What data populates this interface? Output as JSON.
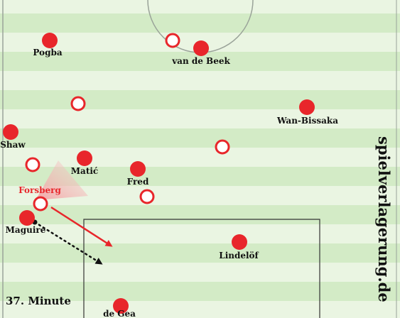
{
  "colors": {
    "stripe_light": "#eaf5e2",
    "stripe_dark": "#d3ebc6",
    "line": "#9aa399",
    "player_fill": "#e8262b",
    "label": "#111111",
    "highlight_label": "#e8262b"
  },
  "filled_players": [
    {
      "label": "Pogba"
    },
    {
      "label": "van de Beek"
    },
    {
      "label": "Wan-Bissaka"
    },
    {
      "label": "Shaw"
    },
    {
      "label": "Matić"
    },
    {
      "label": "Fred"
    },
    {
      "label": "Maguire"
    },
    {
      "label": "Lindelöf"
    },
    {
      "label": "de Gea"
    }
  ],
  "highlighted_player": {
    "label": "Forsberg"
  },
  "caption": "37. Minute",
  "watermark": "spielverlagerung.de"
}
